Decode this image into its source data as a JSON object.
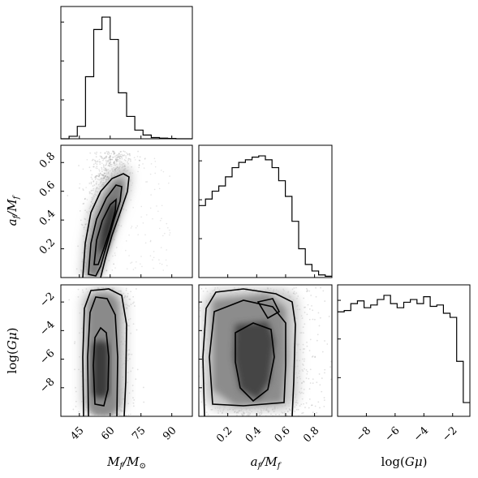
{
  "chart_data": {
    "type": "corner",
    "parameters": [
      {
        "key": "mass",
        "label": "M_f/M_⊙",
        "range": [
          36,
          100
        ],
        "ticks": [
          45,
          60,
          75,
          90
        ]
      },
      {
        "key": "spin",
        "label": "a_f/M_f",
        "range": [
          0.0,
          0.92
        ],
        "ticks": [
          0.2,
          0.4,
          0.6,
          0.8
        ]
      },
      {
        "key": "logGmu",
        "label": "log(Gμ)",
        "range": [
          -10,
          -0.8
        ],
        "ticks": [
          -8,
          -6,
          -4,
          -2
        ]
      }
    ],
    "marginals": [
      {
        "param": "mass",
        "bin_edges": [
          36,
          40,
          44,
          48,
          52,
          56,
          60,
          64,
          68,
          72,
          76,
          80,
          84,
          88,
          92,
          96,
          100
        ],
        "values": [
          0.0,
          0.02,
          0.1,
          0.5,
          0.88,
          0.98,
          0.8,
          0.37,
          0.18,
          0.07,
          0.03,
          0.01,
          0.005,
          0.003,
          0.0,
          0.0
        ]
      },
      {
        "param": "spin",
        "bin_edges": [
          0.0,
          0.046,
          0.092,
          0.138,
          0.184,
          0.23,
          0.276,
          0.322,
          0.368,
          0.414,
          0.46,
          0.506,
          0.552,
          0.598,
          0.644,
          0.69,
          0.736,
          0.782,
          0.828,
          0.874,
          0.92
        ],
        "values": [
          0.55,
          0.6,
          0.66,
          0.7,
          0.77,
          0.84,
          0.88,
          0.9,
          0.92,
          0.93,
          0.9,
          0.84,
          0.74,
          0.62,
          0.43,
          0.22,
          0.1,
          0.05,
          0.02,
          0.01
        ]
      },
      {
        "param": "logGmu",
        "bin_edges": [
          -10,
          -9.54,
          -9.08,
          -8.62,
          -8.16,
          -7.7,
          -7.24,
          -6.78,
          -6.32,
          -5.86,
          -5.4,
          -4.94,
          -4.48,
          -4.02,
          -3.56,
          -3.1,
          -2.64,
          -2.18,
          -1.72,
          -1.26,
          -0.8
        ],
        "values": [
          0.76,
          0.77,
          0.82,
          0.84,
          0.79,
          0.81,
          0.85,
          0.88,
          0.82,
          0.79,
          0.83,
          0.85,
          0.82,
          0.87,
          0.8,
          0.81,
          0.75,
          0.72,
          0.4,
          0.1
        ]
      }
    ],
    "joints": [
      {
        "x": "mass",
        "y": "spin",
        "description": "correlated 2D density with contours"
      },
      {
        "x": "mass",
        "y": "logGmu",
        "description": "2D density with contours"
      },
      {
        "x": "spin",
        "y": "logGmu",
        "description": "2D density with contours"
      }
    ]
  }
}
